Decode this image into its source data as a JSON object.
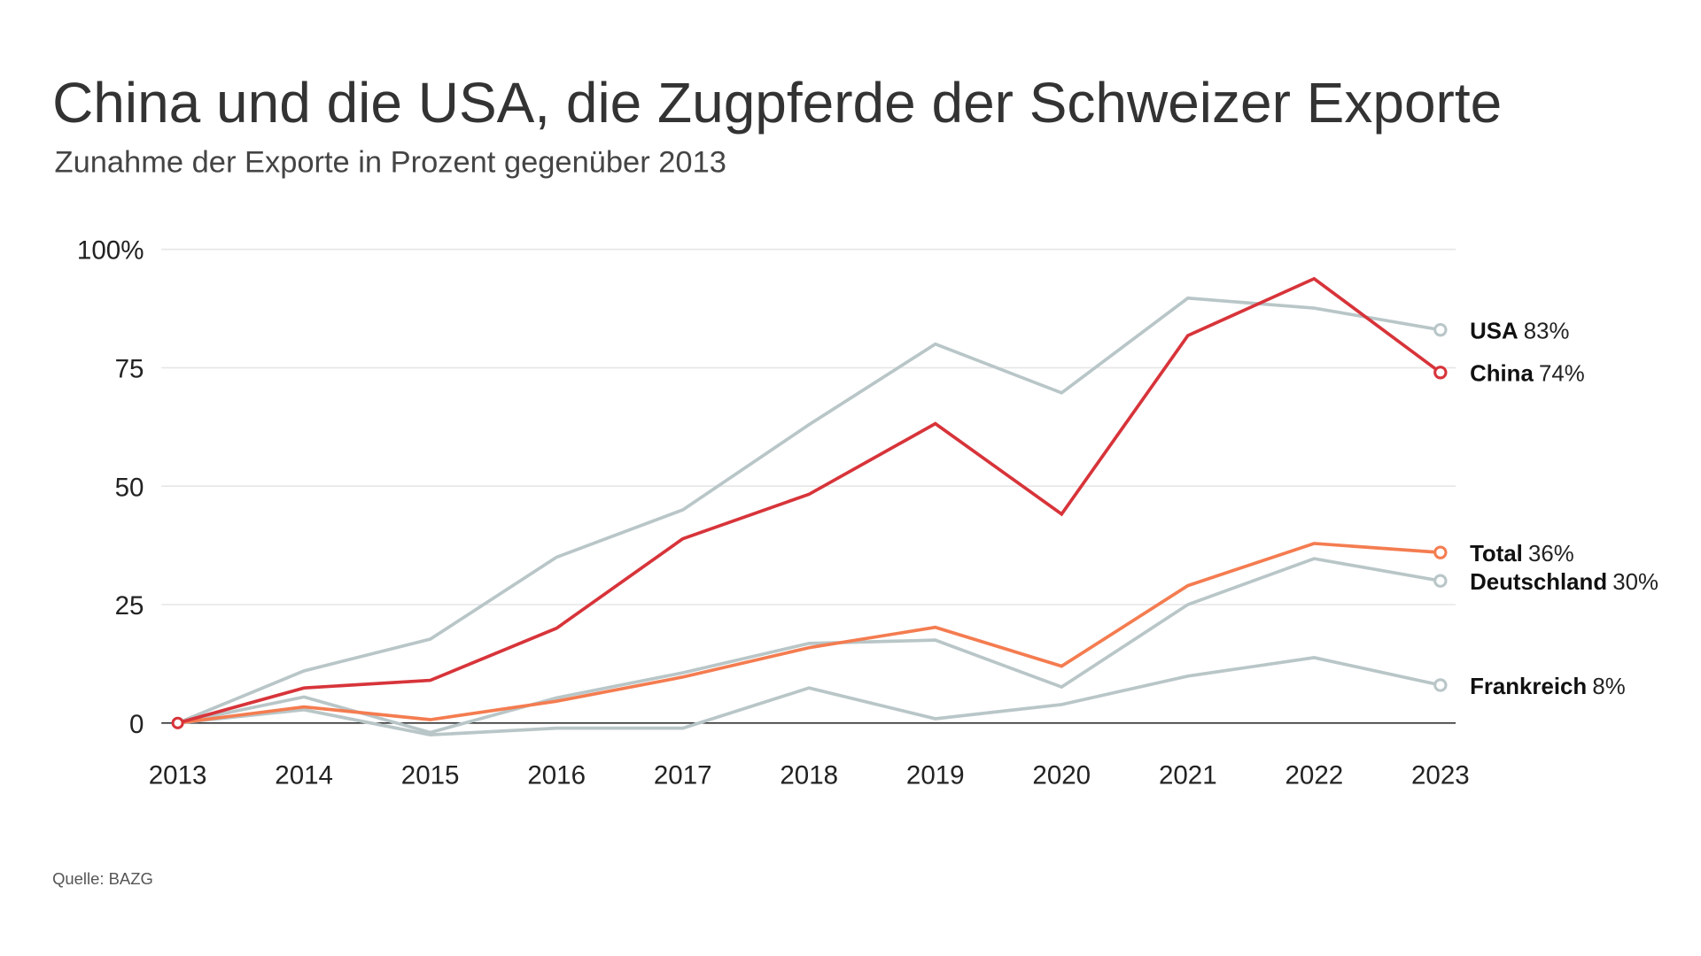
{
  "chart_data": {
    "type": "line",
    "title": "China und die USA, die Zugpferde der Schweizer Exporte",
    "subtitle": "Zunahme der Exporte in Prozent gegenüber 2013",
    "source": "Quelle: BAZG",
    "x": [
      2013,
      2014,
      2015,
      2016,
      2017,
      2018,
      2019,
      2020,
      2021,
      2022,
      2023
    ],
    "ylim": [
      -5,
      100
    ],
    "yticks": [
      0,
      25,
      50,
      75,
      100
    ],
    "ytick_labels": [
      "0",
      "25",
      "50",
      "75",
      "100%"
    ],
    "grid": true,
    "series": [
      {
        "name": "USA",
        "end_label": "83%",
        "color": "#b9c6c8",
        "values": [
          0,
          11,
          17.7,
          35,
          45,
          63,
          80,
          69.7,
          89.7,
          87.6,
          83
        ]
      },
      {
        "name": "Deutschland",
        "end_label": "30%",
        "color": "#b9c6c8",
        "values": [
          0,
          5.5,
          -2,
          5.3,
          10.6,
          16.8,
          17.5,
          7.6,
          25,
          34.7,
          30
        ]
      },
      {
        "name": "Frankreich",
        "end_label": "8%",
        "color": "#b9c6c8",
        "values": [
          0,
          2.8,
          -2.5,
          -1.1,
          -1.1,
          7.4,
          0.9,
          3.9,
          9.9,
          13.8,
          8
        ]
      },
      {
        "name": "Total",
        "end_label": "36%",
        "color": "#f47c50",
        "values": [
          0,
          3.4,
          0.7,
          4.6,
          9.7,
          15.9,
          20.2,
          12,
          29,
          37.9,
          36
        ]
      },
      {
        "name": "China",
        "end_label": "74%",
        "color": "#d7343a",
        "values": [
          0,
          7.4,
          9,
          20,
          38.9,
          48.3,
          63.2,
          44.1,
          81.8,
          93.8,
          74
        ]
      }
    ]
  }
}
